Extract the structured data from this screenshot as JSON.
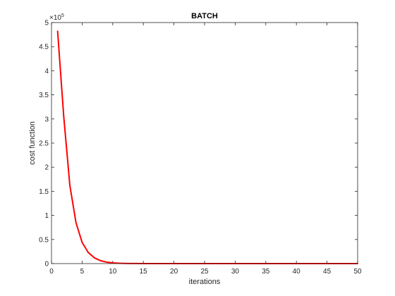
{
  "chart_data": {
    "type": "line",
    "title": "BATCH",
    "xlabel": "iterations",
    "ylabel": "cost function",
    "xlim": [
      0,
      50
    ],
    "ylim": [
      0,
      5
    ],
    "y_multiplier_base": "×10",
    "y_multiplier_exponent": "5",
    "xticks": [
      0,
      5,
      10,
      15,
      20,
      25,
      30,
      35,
      40,
      45,
      50
    ],
    "xtick_labels": [
      "0",
      "5",
      "10",
      "15",
      "20",
      "25",
      "30",
      "35",
      "40",
      "45",
      "50"
    ],
    "yticks": [
      0,
      0.5,
      1,
      1.5,
      2,
      2.5,
      3,
      3.5,
      4,
      4.5,
      5
    ],
    "ytick_labels": [
      "0",
      "0.5",
      "1",
      "1.5",
      "2",
      "2.5",
      "3",
      "3.5",
      "4",
      "4.5",
      "5"
    ],
    "grid": false,
    "box": true,
    "series": [
      {
        "color": "#ff0000",
        "x": [
          1,
          2,
          3,
          4,
          5,
          6,
          7,
          8,
          9,
          10,
          11,
          12,
          13,
          14,
          15,
          16,
          17,
          18,
          19,
          20,
          21,
          22,
          23,
          24,
          25,
          26,
          27,
          28,
          29,
          30,
          31,
          32,
          33,
          34,
          35,
          36,
          37,
          38,
          39,
          40,
          41,
          42,
          43,
          44,
          45,
          46,
          47,
          48,
          49,
          50
        ],
        "y": [
          4.82,
          3.05,
          1.62,
          0.85,
          0.44,
          0.23,
          0.12,
          0.06,
          0.03,
          0.015,
          0.008,
          0.004,
          0.002,
          0.001,
          0.0005,
          0,
          0,
          0,
          0,
          0,
          0,
          0,
          0,
          0,
          0,
          0,
          0,
          0,
          0,
          0,
          0,
          0,
          0,
          0,
          0,
          0,
          0,
          0,
          0,
          0,
          0,
          0,
          0,
          0,
          0,
          0,
          0,
          0,
          0,
          0
        ]
      }
    ]
  }
}
